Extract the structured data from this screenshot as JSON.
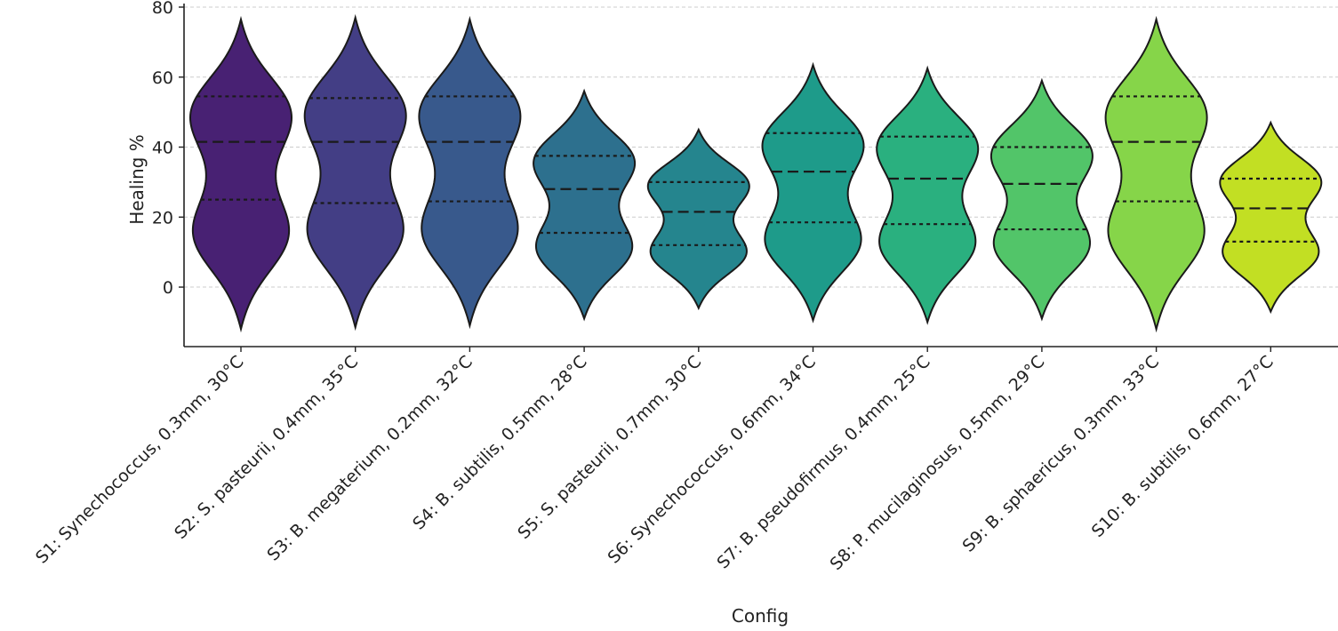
{
  "chart_data": {
    "type": "violin",
    "title": "",
    "xlabel": "Config",
    "ylabel": "Healing %",
    "ylim": [
      -17,
      80
    ],
    "yticks": [
      0,
      20,
      40,
      60,
      80
    ],
    "grid": "horizontal-dashed",
    "categories": [
      "S1: Synechococcus, 0.3mm, 30°C",
      "S2: S. pasteurii, 0.4mm, 35°C",
      "S3: B. megaterium, 0.2mm, 32°C",
      "S4: B. subtilis, 0.5mm, 28°C",
      "S5: S. pasteurii, 0.7mm, 30°C",
      "S6: Synechococcus, 0.6mm, 34°C",
      "S7: B. pseudofirmus, 0.4mm, 25°C",
      "S8: P. mucilaginosus, 0.5mm, 29°C",
      "S9: B. sphaericus, 0.3mm, 33°C",
      "S10: B. subtilis, 0.6mm, 27°C"
    ],
    "violins": [
      {
        "min": -12,
        "max": 76.5,
        "q1": 25,
        "median": 41.5,
        "q3": 54.5,
        "color": "#482173"
      },
      {
        "min": -11.5,
        "max": 77,
        "q1": 24,
        "median": 41.5,
        "q3": 54,
        "color": "#433e85"
      },
      {
        "min": -11,
        "max": 76.5,
        "q1": 24.5,
        "median": 41.5,
        "q3": 54.5,
        "color": "#38598c"
      },
      {
        "min": -9,
        "max": 56,
        "q1": 15.5,
        "median": 28,
        "q3": 37.5,
        "color": "#2d708e"
      },
      {
        "min": -6,
        "max": 45,
        "q1": 12,
        "median": 21.5,
        "q3": 30,
        "color": "#25858e"
      },
      {
        "min": -9.5,
        "max": 63.5,
        "q1": 18.5,
        "median": 33,
        "q3": 44,
        "color": "#1e9b8a"
      },
      {
        "min": -10,
        "max": 62.5,
        "q1": 18,
        "median": 31,
        "q3": 43,
        "color": "#2ab07f"
      },
      {
        "min": -9,
        "max": 59,
        "q1": 16.5,
        "median": 29.5,
        "q3": 40,
        "color": "#52c569"
      },
      {
        "min": -12,
        "max": 76.5,
        "q1": 24.5,
        "median": 41.5,
        "q3": 54.5,
        "color": "#86d549"
      },
      {
        "min": -7,
        "max": 47,
        "q1": 13,
        "median": 22.5,
        "q3": 31,
        "color": "#c2df23"
      }
    ]
  }
}
